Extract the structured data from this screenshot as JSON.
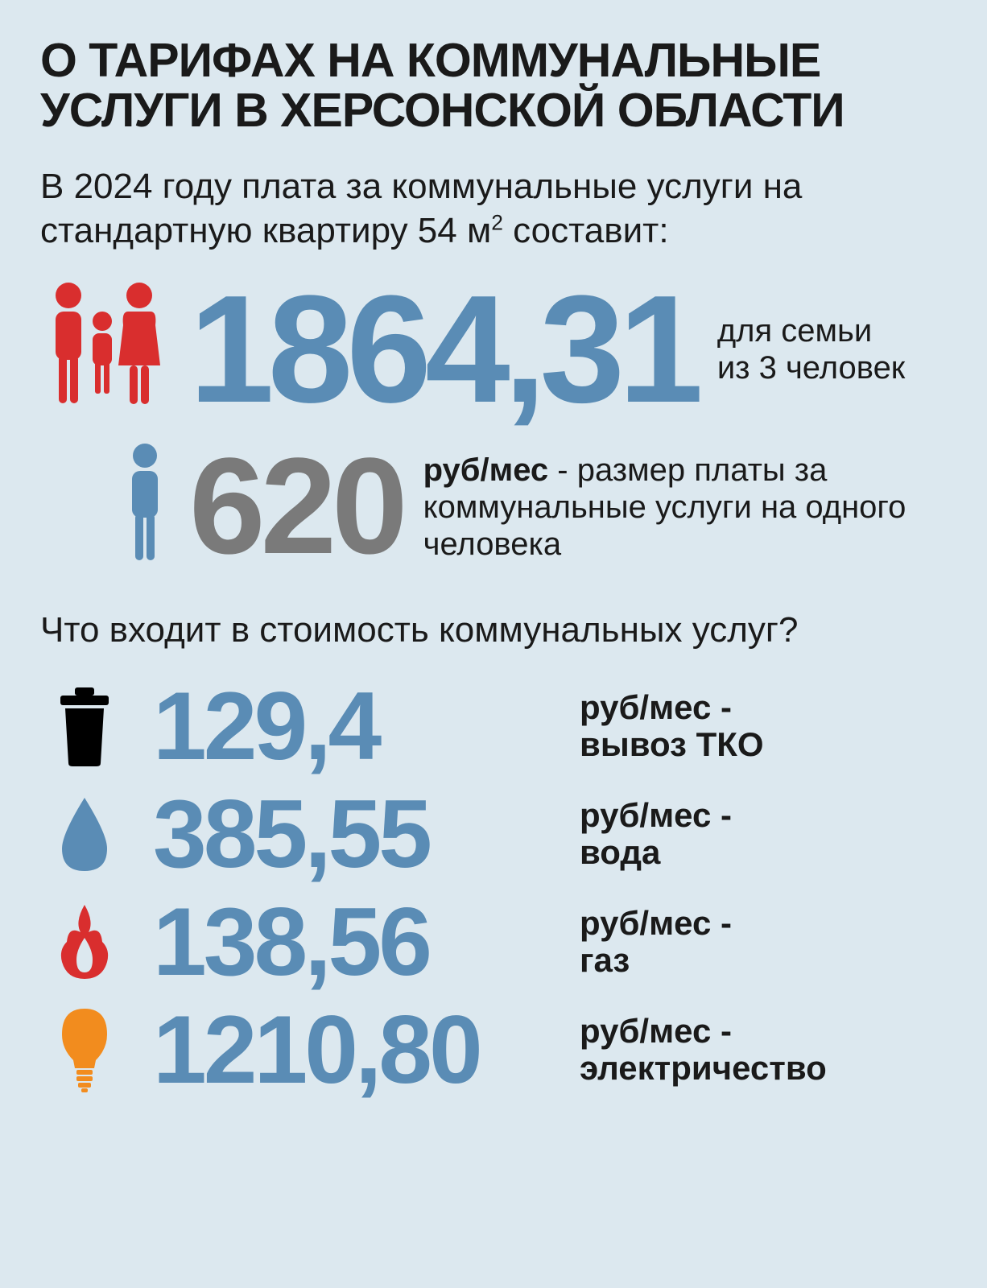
{
  "colors": {
    "background": "#dce8ef",
    "text_dark": "#1a1a1a",
    "blue": "#5a8cb5",
    "red": "#d92e2e",
    "gray": "#7a7a7a",
    "black_icon": "#000000",
    "orange": "#f28c1e"
  },
  "title": "О ТАРИФАХ НА КОММУНАЛЬНЫЕ УСЛУГИ В ХЕРСОНСКОЙ ОБЛАСТИ",
  "subtitle_pre": "В 2024 году плата за коммунальные услуги на стандартную квартиру 54 м",
  "subtitle_sup": "2",
  "subtitle_post": " составит:",
  "family": {
    "value": "1864,31",
    "desc_line1": "для семьи",
    "desc_line2": "из 3 человек",
    "value_color": "#5a8cb5",
    "icon_color": "#d92e2e"
  },
  "single": {
    "value": "620",
    "desc_bold": "руб/мес",
    "desc_rest": " - размер платы за коммунальные услуги на одного человека",
    "value_color": "#7a7a7a",
    "icon_color": "#5a8cb5"
  },
  "section_question": "Что входит в стоимость коммунальных услуг?",
  "items": [
    {
      "icon": "trash",
      "value": "129,4",
      "unit": "руб/мес -",
      "label": "вывоз ТКО",
      "value_color": "#5a8cb5",
      "icon_color": "#000000"
    },
    {
      "icon": "water",
      "value": "385,55",
      "unit": "руб/мес -",
      "label": "вода",
      "value_color": "#5a8cb5",
      "icon_color": "#5a8cb5"
    },
    {
      "icon": "flame",
      "value": "138,56",
      "unit": "руб/мес -",
      "label": "газ",
      "value_color": "#5a8cb5",
      "icon_color": "#d92e2e"
    },
    {
      "icon": "bulb",
      "value": "1210,80",
      "unit": "руб/мес -",
      "label": "электричество",
      "value_color": "#5a8cb5",
      "icon_color": "#f28c1e"
    }
  ]
}
